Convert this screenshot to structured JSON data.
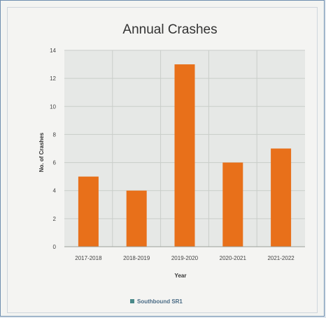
{
  "chart_data": {
    "type": "bar",
    "title": "Annual Crashes",
    "xlabel": "Year",
    "ylabel": "No. of Crashes",
    "categories": [
      "2017-2018",
      "2018-2019",
      "2019-2020",
      "2020-2021",
      "2021-2022"
    ],
    "series": [
      {
        "name": "Southbound SR1",
        "values": [
          5,
          4,
          13,
          6,
          7
        ]
      }
    ],
    "ylim": [
      0,
      14
    ],
    "yticks": [
      0,
      2,
      4,
      6,
      8,
      10,
      12,
      14
    ],
    "grid": true,
    "legend": "bottom",
    "colors": {
      "bar": "#e8701a",
      "plot_bg": "#e6e8e6",
      "grid": "#c9cdc9",
      "legend_marker": "#4a8a8a"
    }
  }
}
